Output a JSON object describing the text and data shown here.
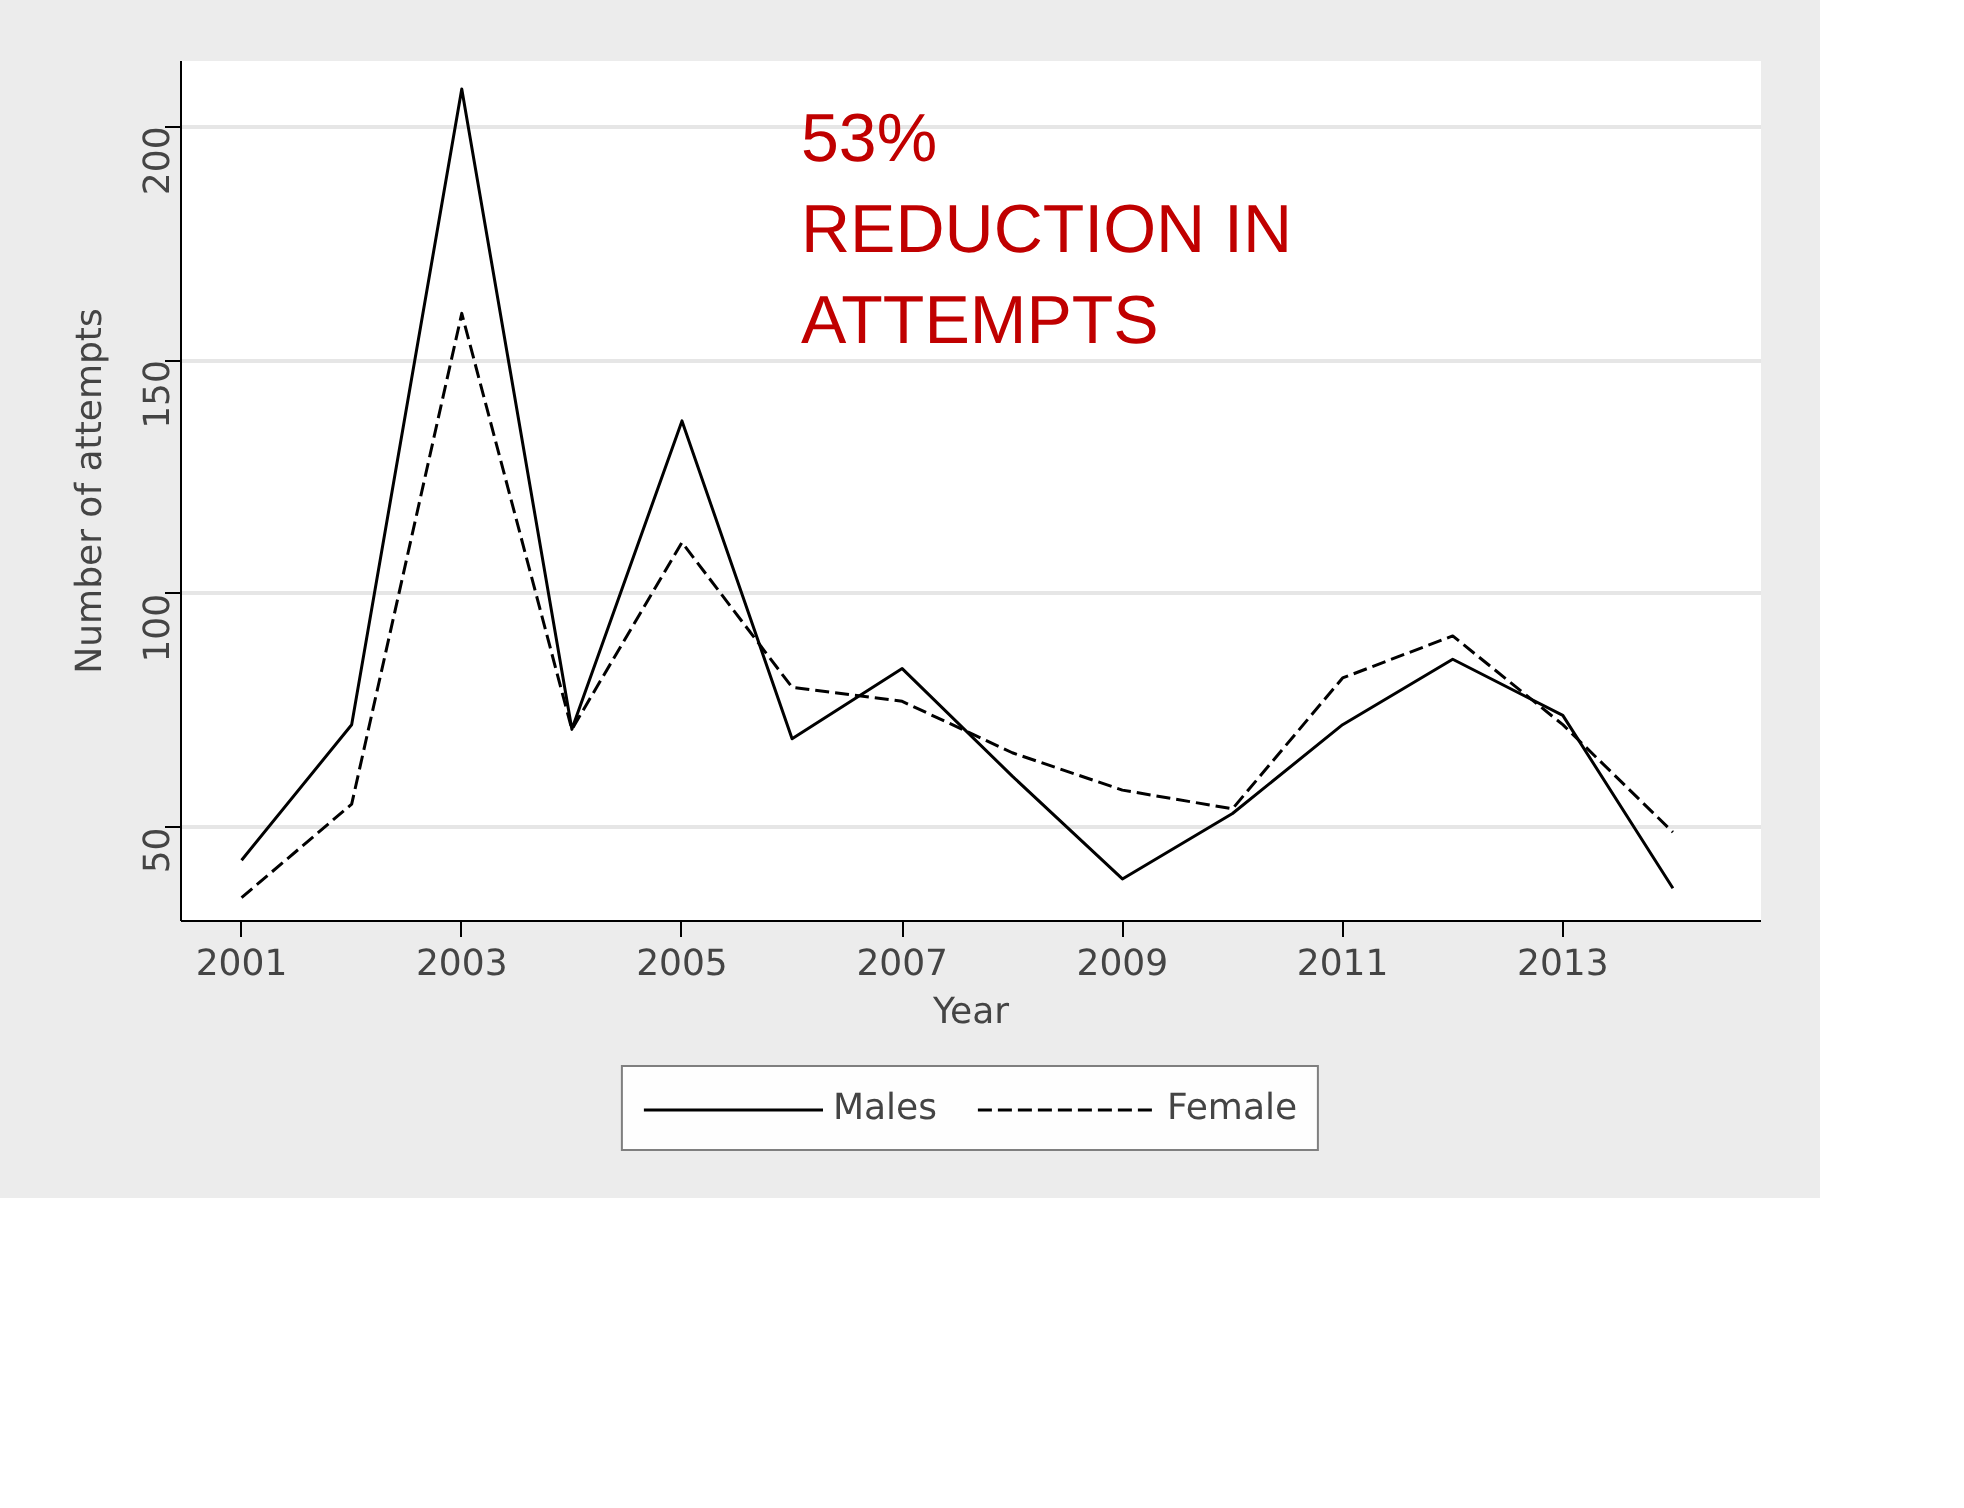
{
  "chart_data": {
    "type": "line",
    "xlabel": "Year",
    "ylabel": "Number of attempts",
    "x": [
      2001,
      2002,
      2003,
      2004,
      2005,
      2006,
      2007,
      2008,
      2009,
      2010,
      2011,
      2012,
      2013,
      2014
    ],
    "series": [
      {
        "name": "Males",
        "color": "#000000",
        "line_style": "solid",
        "values": [
          43,
          72,
          208,
          71,
          137,
          69,
          84,
          61,
          39,
          53,
          72,
          86,
          74,
          37
        ]
      },
      {
        "name": "Female",
        "color": "#000000",
        "line_style": "dashed",
        "values": [
          35,
          55,
          160,
          71,
          111,
          80,
          77,
          66,
          58,
          54,
          82,
          91,
          72,
          49
        ]
      }
    ],
    "xlim": [
      2000.45,
      2014.8
    ],
    "ylim": [
      30,
      214
    ],
    "xticks": [
      2001,
      2003,
      2005,
      2007,
      2009,
      2011,
      2013
    ],
    "yticks": [
      50,
      100,
      150,
      200
    ],
    "grid": "y",
    "legend": "bottom",
    "marker": "none",
    "annotations": [
      "53%\nREDUCTION IN\nATTEMPTS"
    ]
  }
}
